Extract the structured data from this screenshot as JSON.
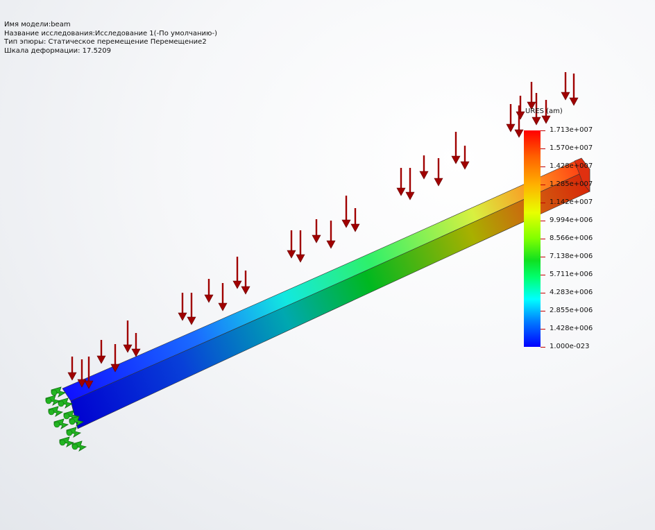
{
  "info": {
    "model_name": "Имя модели:beam",
    "study_name": "Название исследования:Исследование 1(-По умолчанию-)",
    "plot_type": "Тип эпюры: Статическое перемещение Перемещение2",
    "deformation_scale": "Шкала деформации: 17.5209"
  },
  "legend": {
    "unit": "URES (am)",
    "colors": {
      "max": "#ff0000",
      "mid": "#10e020",
      "min": "#0000ff"
    },
    "labels": [
      "1.713e+007",
      "1.570e+007",
      "1.428e+007",
      "1.285e+007",
      "1.142e+007",
      "9.994e+006",
      "8.566e+006",
      "7.138e+006",
      "5.711e+006",
      "4.283e+006",
      "2.855e+006",
      "1.428e+006",
      "1.000e-023"
    ]
  },
  "scene": {
    "beam_color_fixed_end": "#0000ff",
    "beam_color_free_end": "#ff0000",
    "load_arrow_color": "#a00000",
    "fixture_color": "#22b422",
    "load_arrow_icon": "arrow-down-icon",
    "fixture_icon": "fixed-support-icon"
  }
}
